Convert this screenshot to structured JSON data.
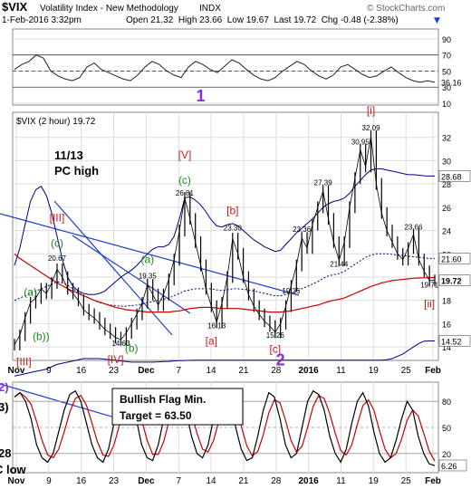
{
  "header": {
    "symbol": "$VIX",
    "name": "Volatility Index - New Methodology",
    "exchange": "INDX",
    "watermark": "© StockCharts.com",
    "datetime": "1-Feb-2016 3:32pm",
    "ohlc": "Open 21.32  High 23.66  Low 19.67  Last 19.72  Chg -0.48 (-2.38%)",
    "ohlc_arrow": "▼"
  },
  "main_label": "$VIX (2 hour) 19.72",
  "annotations": {
    "note_date": "11/13",
    "note_text": "PC high",
    "flag_title": "Bullish Flag Min.",
    "flag_target": "Target = 63.50",
    "left_clip_1": "2)",
    "left_clip_2": "3)",
    "left_clip_3": "28",
    "left_clip_4": "C low"
  },
  "colors": {
    "price": "#000000",
    "upper_band": "#000080",
    "lower_band": "#000080",
    "mid_band": "#000080",
    "ma_red": "#cc0000",
    "trendline": "#1f3fcc",
    "red_label": "#d11b1b",
    "green_label": "#1a8c1a",
    "purple_label": "#8a2be2",
    "rsi_fill": "#7fb89a",
    "panel_bg": "#ffffff",
    "grid": "#dddddd"
  },
  "chart_data": [
    {
      "type": "line",
      "panel": "top-indicator",
      "ylim": [
        10,
        100
      ],
      "y_ticks": [
        90,
        70,
        50,
        30,
        10
      ],
      "reference_lines": [
        70,
        50,
        30
      ],
      "last_value_label": "36.16",
      "values": [
        52,
        58,
        62,
        70,
        66,
        50,
        44,
        40,
        38,
        42,
        55,
        60,
        52,
        48,
        44,
        40,
        38,
        45,
        55,
        62,
        58,
        50,
        45,
        42,
        55,
        62,
        58,
        52,
        48,
        56,
        64,
        60,
        52,
        45,
        40,
        38,
        42,
        50,
        56,
        62,
        58,
        50,
        44,
        40,
        45,
        55,
        58,
        52,
        46,
        42,
        44,
        50,
        55,
        48,
        42,
        38,
        36,
        38,
        36
      ]
    },
    {
      "type": "line",
      "panel": "main-price",
      "ylim": [
        13,
        34
      ],
      "y_ticks": [
        32,
        30,
        28,
        26,
        24,
        22,
        20,
        18,
        16,
        14
      ],
      "price_labels": [
        "28.68",
        "21.60",
        "19.72",
        "14.52"
      ],
      "price_label_marks": [
        28.68,
        21.6,
        19.72,
        14.52
      ],
      "x_ticks": [
        "Nov",
        "9",
        "16",
        "23",
        "Dec",
        "7",
        "14",
        "21",
        "28",
        "2016",
        "11",
        "19",
        "25",
        "Feb"
      ],
      "values": [
        14.2,
        15.0,
        16.5,
        17.8,
        18.2,
        19.0,
        18.6,
        19.5,
        20.67,
        20.0,
        19.0,
        18.6,
        18.0,
        17.2,
        16.8,
        16.5,
        16.0,
        15.5,
        15.2,
        14.8,
        14.63,
        15.2,
        16.0,
        16.8,
        17.8,
        19.35,
        18.5,
        17.6,
        18.5,
        19.8,
        21.5,
        24.0,
        26.81,
        25.0,
        23.0,
        21.0,
        19.0,
        17.5,
        16.13,
        17.8,
        20.0,
        23.3,
        22.0,
        20.0,
        18.5,
        17.5,
        16.8,
        16.2,
        15.8,
        15.26,
        16.0,
        17.5,
        19.25,
        21.0,
        23.36,
        22.5,
        24.5,
        26.0,
        27.39,
        25.0,
        23.0,
        21.44,
        23.0,
        26.0,
        28.5,
        30.95,
        29.5,
        32.09,
        28.0,
        25.5,
        24.0,
        23.0,
        22.0,
        21.5,
        22.5,
        23.66,
        21.5,
        20.5,
        19.71,
        19.72
      ],
      "upper_band": [
        21.0,
        22.5,
        24.5,
        26.5,
        27.5,
        27.8,
        27.0,
        25.5,
        23.5,
        21.5,
        20.0,
        19.2,
        18.8,
        18.6,
        18.5,
        18.5,
        18.6,
        18.8,
        19.2,
        19.6,
        20.0,
        20.3,
        20.6,
        21.0,
        21.5,
        22.0,
        22.4,
        22.6,
        22.6,
        22.8,
        23.5,
        25.0,
        26.8,
        26.9,
        26.6,
        26.2,
        25.6,
        24.9,
        24.4,
        24.3,
        24.5,
        24.6,
        24.4,
        24.0,
        23.6,
        23.2,
        22.9,
        22.6,
        22.4,
        22.2,
        22.3,
        22.8,
        23.3,
        23.8,
        24.2,
        24.6,
        25.0,
        25.5,
        26.0,
        26.3,
        26.5,
        26.6,
        26.8,
        27.2,
        27.8,
        28.3,
        28.8,
        29.2,
        29.3,
        29.3,
        29.2,
        29.1,
        29.0,
        28.9,
        28.8,
        28.8,
        28.75,
        28.7,
        28.68,
        28.68
      ],
      "mid_band": [
        18.0,
        18.2,
        18.4,
        18.6,
        18.8,
        19.0,
        19.2,
        19.4,
        19.6,
        19.5,
        19.3,
        19.0,
        18.7,
        18.4,
        18.2,
        18.0,
        17.8,
        17.7,
        17.6,
        17.55,
        17.5,
        17.5,
        17.55,
        17.6,
        17.7,
        17.8,
        17.9,
        18.0,
        18.1,
        18.2,
        18.4,
        18.6,
        18.8,
        18.9,
        19.0,
        19.0,
        19.0,
        19.0,
        18.9,
        18.85,
        18.9,
        19.0,
        19.0,
        18.95,
        18.9,
        18.8,
        18.7,
        18.6,
        18.5,
        18.4,
        18.4,
        18.5,
        18.6,
        18.8,
        19.0,
        19.2,
        19.4,
        19.6,
        19.9,
        20.1,
        20.2,
        20.3,
        20.5,
        20.8,
        21.1,
        21.4,
        21.7,
        21.9,
        22.0,
        22.0,
        22.0,
        21.95,
        21.9,
        21.85,
        21.8,
        21.75,
        21.7,
        21.65,
        21.62,
        21.6
      ],
      "lower_band": [
        11.5,
        11.6,
        11.7,
        11.8,
        11.9,
        12.0,
        12.1,
        12.3,
        12.5,
        12.6,
        12.7,
        12.8,
        12.9,
        13.0,
        13.0,
        13.0,
        13.0,
        12.95,
        12.9,
        12.85,
        12.8,
        12.75,
        12.7,
        12.7,
        12.7,
        12.7,
        12.7,
        12.72,
        12.74,
        12.76,
        12.8,
        12.82,
        12.84,
        12.85,
        12.86,
        12.86,
        12.86,
        12.86,
        12.86,
        12.86,
        12.86,
        12.86,
        12.86,
        12.86,
        12.86,
        12.86,
        12.86,
        12.86,
        12.86,
        12.86,
        12.86,
        12.86,
        12.86,
        12.86,
        12.86,
        12.86,
        12.86,
        12.86,
        12.86,
        12.86,
        12.86,
        12.86,
        12.86,
        12.86,
        12.86,
        12.86,
        12.86,
        12.86,
        12.86,
        12.86,
        12.9,
        13.0,
        13.2,
        13.4,
        13.7,
        14.0,
        14.3,
        14.5,
        14.52,
        14.52
      ],
      "ma_red": [
        22.0,
        21.6,
        21.3,
        21.0,
        20.7,
        20.4,
        20.1,
        19.8,
        19.5,
        19.25,
        19.0,
        18.8,
        18.6,
        18.4,
        18.2,
        18.0,
        17.85,
        17.7,
        17.55,
        17.4,
        17.3,
        17.2,
        17.15,
        17.1,
        17.05,
        17.0,
        17.0,
        17.0,
        17.0,
        17.0,
        17.05,
        17.1,
        17.2,
        17.3,
        17.35,
        17.4,
        17.4,
        17.4,
        17.35,
        17.3,
        17.3,
        17.3,
        17.3,
        17.25,
        17.2,
        17.15,
        17.1,
        17.05,
        17.0,
        17.0,
        17.0,
        17.05,
        17.1,
        17.2,
        17.3,
        17.4,
        17.5,
        17.6,
        17.75,
        17.9,
        18.0,
        18.1,
        18.2,
        18.4,
        18.6,
        18.8,
        19.0,
        19.2,
        19.35,
        19.5,
        19.6,
        19.7,
        19.75,
        19.8,
        19.85,
        19.9,
        19.92,
        19.94,
        19.95,
        19.96
      ]
    },
    {
      "type": "line",
      "panel": "bottom-stochastic",
      "ylim": [
        0,
        100
      ],
      "y_ticks": [
        80,
        50,
        20
      ],
      "last_value_label": "6.26",
      "x_ticks": [
        "Nov",
        "9",
        "16",
        "23",
        "Dec",
        "7",
        "14",
        "21",
        "28",
        "2016",
        "11",
        "19",
        "25",
        "Feb"
      ],
      "values": [
        85,
        90,
        80,
        60,
        30,
        15,
        10,
        20,
        45,
        70,
        88,
        92,
        80,
        55,
        30,
        15,
        10,
        25,
        55,
        80,
        90,
        85,
        60,
        30,
        15,
        12,
        30,
        60,
        85,
        92,
        88,
        70,
        40,
        20,
        15,
        30,
        60,
        85,
        90,
        80,
        50,
        25,
        12,
        15,
        40,
        70,
        90,
        85,
        60,
        30,
        15,
        20,
        50,
        80,
        92,
        88,
        70,
        40,
        20,
        10,
        25,
        55,
        80,
        90,
        75,
        45,
        20,
        10,
        15,
        35,
        60,
        80,
        70,
        40,
        20,
        8,
        6
      ]
    }
  ],
  "wave_labels": [
    {
      "text": "1",
      "color": "purple",
      "size": "large",
      "idx": 35,
      "panel": "top-indicator"
    },
    {
      "text": "[V]",
      "color": "red",
      "idx": 32,
      "y": 30.2
    },
    {
      "text": "(c)",
      "color": "green",
      "idx": 32,
      "y": 28.0
    },
    {
      "text": "26.81",
      "color": "black",
      "idx": 32,
      "y": 27.0
    },
    {
      "text": "[b]",
      "color": "red",
      "idx": 41,
      "y": 25.4
    },
    {
      "text": "23.30",
      "color": "black",
      "idx": 41,
      "y": 24.0
    },
    {
      "text": "[III]",
      "color": "red",
      "idx": 8,
      "y": 24.8
    },
    {
      "text": "(c)",
      "color": "green",
      "idx": 8,
      "y": 22.6
    },
    {
      "text": "20.67",
      "color": "black",
      "idx": 8,
      "y": 21.4
    },
    {
      "text": "(a)",
      "color": "green",
      "idx": 25,
      "y": 21.2
    },
    {
      "text": "19.35",
      "color": "black",
      "idx": 25,
      "y": 19.9
    },
    {
      "text": "(a)",
      "color": "green",
      "idx": 3,
      "y": 18.4
    },
    {
      "text": "(b))",
      "color": "green",
      "idx": 5,
      "y": 14.6
    },
    {
      "text": "14.63",
      "color": "black",
      "idx": 20,
      "y": 14.1
    },
    {
      "text": "(b)",
      "color": "green",
      "idx": 22,
      "y": 13.6
    },
    {
      "text": "[IV]",
      "color": "red",
      "idx": 19,
      "y": 12.6
    },
    {
      "text": "16.13",
      "color": "black",
      "idx": 38,
      "y": 15.6
    },
    {
      "text": "[a]",
      "color": "red",
      "idx": 37,
      "y": 14.2
    },
    {
      "text": "15.26",
      "color": "black",
      "idx": 49,
      "y": 14.8
    },
    {
      "text": "[c]",
      "color": "red",
      "idx": 49,
      "y": 13.5
    },
    {
      "text": "2",
      "color": "purple",
      "size": "large",
      "idx": 50,
      "y": 12.4
    },
    {
      "text": "19.25",
      "color": "black",
      "idx": 52,
      "y": 18.6
    },
    {
      "text": "23.36",
      "color": "black",
      "idx": 54,
      "y": 23.9
    },
    {
      "text": "27.39",
      "color": "black",
      "idx": 58,
      "y": 27.9
    },
    {
      "text": "21.44",
      "color": "black",
      "idx": 61,
      "y": 20.9
    },
    {
      "text": "30.95",
      "color": "black",
      "idx": 65,
      "y": 31.4
    },
    {
      "text": "32.09",
      "color": "black",
      "idx": 67,
      "y": 32.6
    },
    {
      "text": "[i]",
      "color": "red",
      "idx": 67,
      "y": 34.0
    },
    {
      "text": "23.66",
      "color": "black",
      "idx": 75,
      "y": 24.1
    },
    {
      "text": "19.71",
      "color": "black",
      "idx": 78,
      "y": 19.1
    },
    {
      "text": "[ii]",
      "color": "red",
      "idx": 78,
      "y": 17.4
    },
    {
      "text": "[III]",
      "color": "red",
      "idx": 0,
      "y": 12.4,
      "edge": "left"
    }
  ]
}
